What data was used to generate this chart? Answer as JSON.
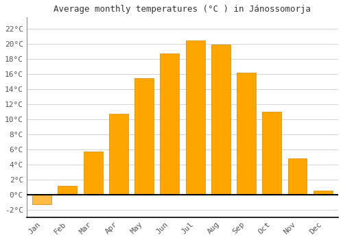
{
  "title": "Average monthly temperatures (°C ) in Jánossomorja",
  "months": [
    "Jan",
    "Feb",
    "Mar",
    "Apr",
    "May",
    "Jun",
    "Jul",
    "Aug",
    "Sep",
    "Oct",
    "Nov",
    "Dec"
  ],
  "values": [
    -1.3,
    1.2,
    5.7,
    10.7,
    15.4,
    18.7,
    20.4,
    19.9,
    16.2,
    11.0,
    4.8,
    0.5
  ],
  "bar_color_positive": "#FFA500",
  "bar_color_negative": "#FFBB44",
  "bar_edge_color": "#CC8800",
  "background_color": "#ffffff",
  "plot_bg_color": "#ffffff",
  "grid_color": "#cccccc",
  "zero_line_color": "#000000",
  "ytick_labels": [
    "22°C",
    "20°C",
    "18°C",
    "16°C",
    "14°C",
    "12°C",
    "10°C",
    "8°C",
    "6°C",
    "4°C",
    "2°C",
    "0°C",
    "-2°C"
  ],
  "ytick_values": [
    22,
    20,
    18,
    16,
    14,
    12,
    10,
    8,
    6,
    4,
    2,
    0,
    -2
  ],
  "ylim": [
    -3.0,
    23.5
  ],
  "xlim": [
    -0.6,
    11.6
  ],
  "bar_width": 0.75,
  "title_fontsize": 9,
  "tick_fontsize": 8,
  "font_family": "monospace"
}
